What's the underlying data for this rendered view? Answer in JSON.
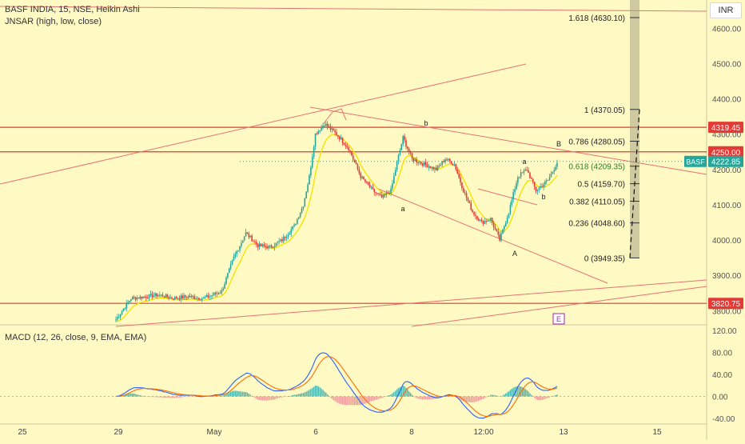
{
  "header": {
    "symbol_line": "BASF INDIA, 15, NSE, Heikin Ashi",
    "indicator_line": "JNSAR (high, low, close)",
    "currency_button": "INR"
  },
  "macd": {
    "label": "MACD (12, 26, close, 9, EMA, EMA)",
    "ticks": [
      "120.00",
      "80.00",
      "40.00",
      "0.00",
      "-40.00"
    ]
  },
  "price_axis": {
    "ticks": [
      "4600.00",
      "4500.00",
      "4400.00",
      "4300.00",
      "4200.00",
      "4100.00",
      "4000.00",
      "3900.00",
      "3800.00"
    ],
    "badges": [
      {
        "text": "4319.45",
        "color": "#e53935"
      },
      {
        "text": "4250.00",
        "color": "#e53935"
      },
      {
        "text": "4222.85",
        "color": "#26a69a"
      },
      {
        "text": "3820.75",
        "color": "#e53935"
      }
    ],
    "symbol_tag": "BASF"
  },
  "time_axis": {
    "labels": [
      "25",
      "29",
      "May",
      "6",
      "8",
      "12:00",
      "13",
      "15"
    ]
  },
  "fib": [
    {
      "label": "1.618 (4630.10)",
      "level": 1.618,
      "price": 4630.1
    },
    {
      "label": "1 (4370.05)",
      "level": 1,
      "price": 4370.05
    },
    {
      "label": "0.786 (4280.05)",
      "level": 0.786,
      "price": 4280.05
    },
    {
      "label": "0.618 (4209.35)",
      "level": 0.618,
      "price": 4209.35
    },
    {
      "label": "0.5 (4159.70)",
      "level": 0.5,
      "price": 4159.7
    },
    {
      "label": "0.382 (4110.05)",
      "level": 0.382,
      "price": 4110.05
    },
    {
      "label": "0.236 (4048.60)",
      "level": 0.236,
      "price": 4048.6
    },
    {
      "label": "0 (3949.35)",
      "level": 0,
      "price": 3949.35
    }
  ],
  "wave_labels": [
    {
      "text": "b"
    },
    {
      "text": "a"
    },
    {
      "text": "a"
    },
    {
      "text": "b"
    },
    {
      "text": "B"
    },
    {
      "text": "A"
    }
  ],
  "marker": {
    "text": "E"
  },
  "colors": {
    "background": "#fff9c4",
    "up": "#26a69a",
    "down": "#e53935",
    "sar": "#f5e400",
    "line": "#e57373",
    "macd": "#2962ff",
    "signal": "#ff6d00"
  },
  "chart_data": {
    "type": "candlestick",
    "title": "BASF INDIA, 15, NSE, Heikin Ashi",
    "ylim": [
      3760,
      4680
    ],
    "x_labels": [
      "25",
      "29",
      "May",
      "6",
      "8",
      "12:00",
      "13",
      "15"
    ],
    "horizontal_levels": [
      4319.45,
      4250.0,
      3820.75
    ],
    "last_price": 4222.85,
    "macd_ylim": [
      -50,
      130
    ],
    "swing_path": [
      {
        "t": 0,
        "v": 3775
      },
      {
        "t": 10,
        "v": 3835
      },
      {
        "t": 20,
        "v": 3840
      },
      {
        "t": 28,
        "v": 3845
      },
      {
        "t": 38,
        "v": 3835
      },
      {
        "t": 48,
        "v": 3840
      },
      {
        "t": 58,
        "v": 3835
      },
      {
        "t": 70,
        "v": 3855
      },
      {
        "t": 78,
        "v": 3950
      },
      {
        "t": 86,
        "v": 4020
      },
      {
        "t": 94,
        "v": 3985
      },
      {
        "t": 102,
        "v": 3980
      },
      {
        "t": 110,
        "v": 4000
      },
      {
        "t": 118,
        "v": 4040
      },
      {
        "t": 124,
        "v": 4100
      },
      {
        "t": 128,
        "v": 4180
      },
      {
        "t": 132,
        "v": 4300
      },
      {
        "t": 138,
        "v": 4330
      },
      {
        "t": 146,
        "v": 4300
      },
      {
        "t": 154,
        "v": 4260
      },
      {
        "t": 162,
        "v": 4180
      },
      {
        "t": 170,
        "v": 4140
      },
      {
        "t": 176,
        "v": 4120
      },
      {
        "t": 182,
        "v": 4140
      },
      {
        "t": 186,
        "v": 4220
      },
      {
        "t": 190,
        "v": 4290
      },
      {
        "t": 196,
        "v": 4230
      },
      {
        "t": 204,
        "v": 4215
      },
      {
        "t": 212,
        "v": 4200
      },
      {
        "t": 218,
        "v": 4230
      },
      {
        "t": 224,
        "v": 4215
      },
      {
        "t": 230,
        "v": 4140
      },
      {
        "t": 236,
        "v": 4080
      },
      {
        "t": 242,
        "v": 4050
      },
      {
        "t": 248,
        "v": 4060
      },
      {
        "t": 254,
        "v": 4000
      },
      {
        "t": 260,
        "v": 4080
      },
      {
        "t": 266,
        "v": 4180
      },
      {
        "t": 272,
        "v": 4200
      },
      {
        "t": 278,
        "v": 4140
      },
      {
        "t": 286,
        "v": 4170
      },
      {
        "t": 292,
        "v": 4220
      }
    ]
  }
}
